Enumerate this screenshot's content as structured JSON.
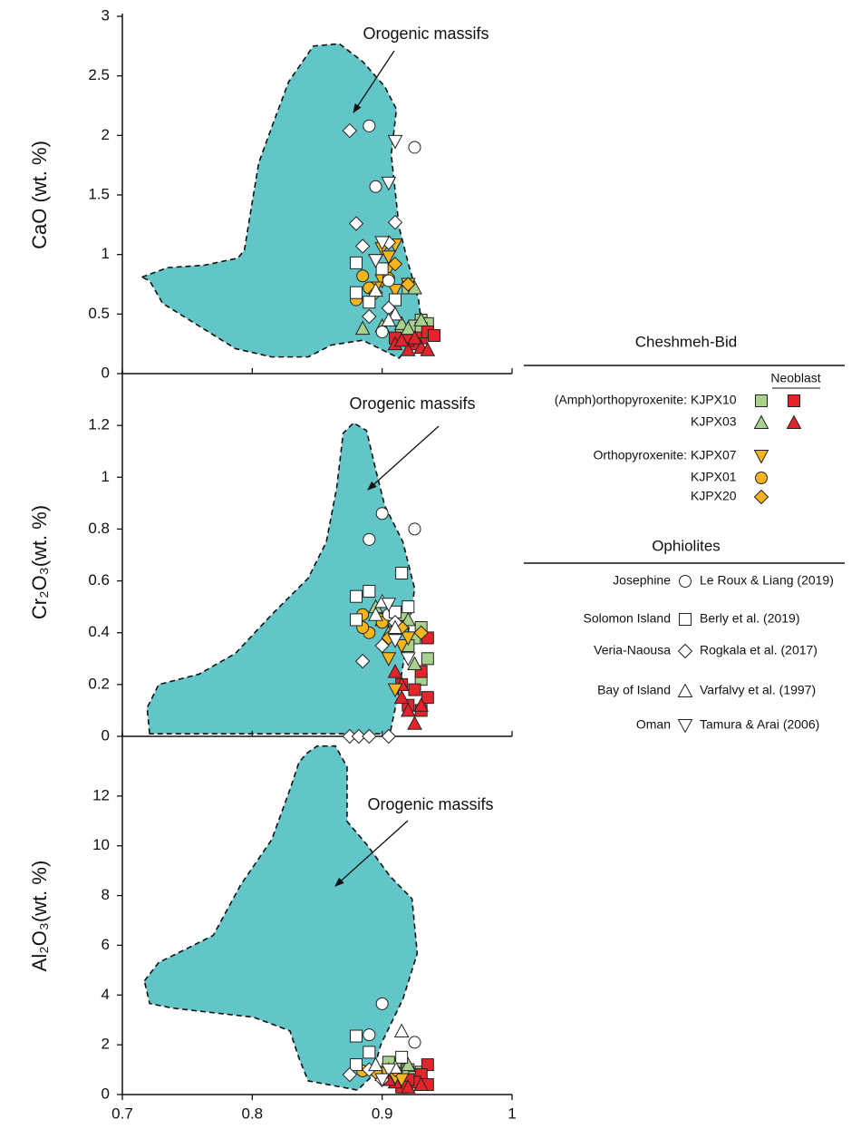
{
  "legend": {
    "title": "Cheshmeh-Bid",
    "neoblast_label": "Neoblast",
    "ophiolites_title": "Ophiolites",
    "series": [
      {
        "name": "KJPX10",
        "group": "(Amph)orthopyroxenite:",
        "marker": "square",
        "color": "#a9d18e"
      },
      {
        "marker": "square",
        "color": "#e3242b",
        "neoblast": true
      },
      {
        "name": "KJPX03",
        "marker": "triangle",
        "color": "#a9d18e"
      },
      {
        "marker": "triangle",
        "color": "#e3242b",
        "neoblast": true
      },
      {
        "name": "KJPX07",
        "group": "Orthopyroxenite:",
        "marker": "down-triangle",
        "color": "#f6b51e"
      },
      {
        "name": "KJPX01",
        "marker": "circle",
        "color": "#f6b51e"
      },
      {
        "name": "KJPX20",
        "marker": "diamond",
        "color": "#f6b51e"
      },
      {
        "name": "Le Roux & Liang (2019)",
        "locality": "Josephine",
        "marker": "circle",
        "color": "#ffffff"
      },
      {
        "name": "Berly et al. (2019)",
        "locality": "Solomon Island",
        "marker": "square",
        "color": "#ffffff"
      },
      {
        "name": "Rogkala et al. (2017)",
        "locality": "Veria-Naousa",
        "marker": "diamond",
        "color": "#ffffff"
      },
      {
        "name": "Varfalvy et al. (1997)",
        "locality": "Bay of Island",
        "marker": "triangle",
        "color": "#ffffff"
      },
      {
        "name": "Tamura & Arai (2006)",
        "locality": "Oman",
        "marker": "down-triangle",
        "color": "#ffffff"
      }
    ]
  },
  "chart_data": [
    {
      "type": "scatter",
      "ylabel": "CaO  (wt. %)",
      "ylim": [
        0,
        3
      ],
      "yticks": [
        0,
        0.5,
        1,
        1.5,
        2,
        2.5,
        3
      ],
      "annotation": "Orogenic massifs",
      "field": {
        "color": "#62c6c8",
        "x": [
          0.715,
          0.735,
          0.763,
          0.789,
          0.794,
          0.798,
          0.805,
          0.815,
          0.828,
          0.847,
          0.867,
          0.885,
          0.902,
          0.911,
          0.907,
          0.913,
          0.92,
          0.928,
          0.931,
          0.913,
          0.885,
          0.861,
          0.843,
          0.815,
          0.787,
          0.759,
          0.731,
          0.721
        ],
        "y": [
          0.81,
          0.89,
          0.91,
          0.97,
          1.04,
          1.31,
          1.77,
          2.07,
          2.45,
          2.75,
          2.77,
          2.62,
          2.41,
          2.22,
          1.84,
          1.23,
          0.93,
          0.62,
          0.36,
          0.13,
          0.28,
          0.24,
          0.14,
          0.14,
          0.21,
          0.4,
          0.59,
          0.78
        ]
      },
      "series": [
        {
          "x": [
            0.92,
            0.93,
            0.935,
            0.925,
            0.915,
            0.93
          ],
          "y": [
            0.72,
            0.45,
            0.42,
            0.4,
            0.35,
            0.38
          ]
        },
        {
          "x": [
            0.93,
            0.935,
            0.925,
            0.92,
            0.94,
            0.91
          ],
          "y": [
            0.3,
            0.35,
            0.25,
            0.28,
            0.32,
            0.3
          ]
        },
        {
          "x": [
            0.9,
            0.915,
            0.925,
            0.93,
            0.92,
            0.885
          ],
          "y": [
            0.4,
            0.42,
            0.72,
            0.45,
            0.38,
            0.38
          ]
        },
        {
          "x": [
            0.91,
            0.92,
            0.93,
            0.925,
            0.935,
            0.915
          ],
          "y": [
            0.25,
            0.2,
            0.22,
            0.3,
            0.2,
            0.28
          ]
        },
        {
          "x": [
            0.9,
            0.905,
            0.91,
            0.895,
            0.905,
            0.9,
            0.91,
            0.92,
            0.895
          ],
          "y": [
            1.05,
            0.98,
            1.08,
            0.95,
            0.88,
            0.78,
            0.7,
            0.75,
            0.72
          ]
        },
        {
          "x": [
            0.88,
            0.885,
            0.89,
            0.905
          ],
          "y": [
            0.62,
            0.82,
            0.72,
            0.8
          ]
        },
        {
          "x": [
            0.91,
            0.92,
            0.895
          ],
          "y": [
            0.92,
            0.75,
            0.68
          ]
        },
        {
          "x": [
            0.89,
            0.925,
            0.895,
            0.905,
            0.9
          ],
          "y": [
            2.08,
            1.9,
            1.57,
            0.78,
            0.35
          ]
        },
        {
          "x": [
            0.88,
            0.88,
            0.9,
            0.89,
            0.91
          ],
          "y": [
            0.93,
            0.68,
            0.88,
            0.6,
            0.62
          ]
        },
        {
          "x": [
            0.875,
            0.88,
            0.91,
            0.885,
            0.905,
            0.89,
            0.905
          ],
          "y": [
            2.04,
            1.26,
            1.27,
            1.07,
            1.1,
            0.48,
            0.55
          ]
        },
        {
          "x": [
            0.895,
            0.91,
            0.905
          ],
          "y": [
            0.7,
            0.5,
            0.45
          ]
        },
        {
          "x": [
            0.91,
            0.905,
            0.9,
            0.895
          ],
          "y": [
            1.95,
            1.6,
            1.1,
            0.95
          ]
        }
      ]
    },
    {
      "type": "scatter",
      "ylabel": "Cr₂O₃(wt. %)",
      "ylim": [
        0,
        1.4
      ],
      "yticks": [
        0,
        0.2,
        0.4,
        0.6,
        0.8,
        1,
        1.2
      ],
      "annotation": "Orogenic massifs",
      "field": {
        "color": "#62c6c8",
        "x": [
          0.721,
          0.719,
          0.728,
          0.759,
          0.787,
          0.815,
          0.843,
          0.857,
          0.865,
          0.87,
          0.878,
          0.888,
          0.895,
          0.902,
          0.916,
          0.925,
          0.92,
          0.913,
          0.906
        ],
        "y": [
          0.01,
          0.11,
          0.2,
          0.24,
          0.32,
          0.47,
          0.61,
          0.75,
          0.96,
          1.17,
          1.21,
          1.18,
          1.03,
          0.89,
          0.75,
          0.57,
          0.4,
          0.18,
          0.01
        ]
      },
      "series": [
        {
          "x": [
            0.93,
            0.925,
            0.935,
            0.93,
            0.915,
            0.92
          ],
          "y": [
            0.42,
            0.38,
            0.3,
            0.22,
            0.47,
            0.35
          ]
        },
        {
          "x": [
            0.935,
            0.93,
            0.925,
            0.935,
            0.92,
            0.93,
            0.915
          ],
          "y": [
            0.38,
            0.25,
            0.18,
            0.15,
            0.12,
            0.1,
            0.2
          ]
        },
        {
          "x": [
            0.895,
            0.9,
            0.91,
            0.92,
            0.925,
            0.905
          ],
          "y": [
            0.5,
            0.45,
            0.43,
            0.45,
            0.28,
            0.4
          ]
        },
        {
          "x": [
            0.91,
            0.915,
            0.92,
            0.93,
            0.925,
            0.915
          ],
          "y": [
            0.25,
            0.15,
            0.1,
            0.12,
            0.05,
            0.2
          ]
        },
        {
          "x": [
            0.91,
            0.915,
            0.905,
            0.92,
            0.91,
            0.9
          ],
          "y": [
            0.4,
            0.35,
            0.3,
            0.38,
            0.18,
            0.45
          ]
        },
        {
          "x": [
            0.885,
            0.89,
            0.9,
            0.885
          ],
          "y": [
            0.47,
            0.4,
            0.44,
            0.42
          ]
        },
        {
          "x": [
            0.915,
            0.93,
            0.905
          ],
          "y": [
            0.42,
            0.4,
            0.38
          ]
        },
        {
          "x": [
            0.9,
            0.925,
            0.89,
            0.905
          ],
          "y": [
            0.86,
            0.8,
            0.76,
            0.47
          ]
        },
        {
          "x": [
            0.915,
            0.88,
            0.89,
            0.91,
            0.88,
            0.92
          ],
          "y": [
            0.63,
            0.54,
            0.56,
            0.48,
            0.45,
            0.5
          ]
        },
        {
          "x": [
            0.885,
            0.875,
            0.882,
            0.89,
            0.905,
            0.9,
            0.91
          ],
          "y": [
            0.29,
            0,
            0,
            0,
            0,
            0.35,
            0.44
          ]
        },
        {
          "x": [
            0.9,
            0.895,
            0.91
          ],
          "y": [
            0.52,
            0.47,
            0.42
          ]
        },
        {
          "x": [
            0.905,
            0.91,
            0.92
          ],
          "y": [
            0.51,
            0.37,
            0.3
          ]
        }
      ]
    },
    {
      "type": "scatter",
      "ylabel": "Al₂O₃(wt. %)",
      "ylim": [
        0,
        14.4
      ],
      "yticks": [
        0,
        2,
        4,
        6,
        8,
        10,
        12
      ],
      "xlim": [
        0.7,
        1
      ],
      "xticks": [
        0.7,
        0.8,
        0.9,
        1
      ],
      "annotation": "Orogenic massifs",
      "field": {
        "color": "#62c6c8",
        "x": [
          0.717,
          0.728,
          0.749,
          0.77,
          0.791,
          0.815,
          0.829,
          0.836,
          0.842,
          0.85,
          0.864,
          0.873,
          0.873,
          0.888,
          0.906,
          0.923,
          0.927,
          0.916,
          0.899,
          0.892,
          0.881,
          0.843,
          0.836,
          0.829,
          0.801,
          0.77,
          0.738,
          0.721
        ],
        "y": [
          4.57,
          5.31,
          5.85,
          6.4,
          8.42,
          10.25,
          12.26,
          13.36,
          13.72,
          14.01,
          14.01,
          13.17,
          10.98,
          10.06,
          8.78,
          7.87,
          5.67,
          3.84,
          2.01,
          0.73,
          0.18,
          0.55,
          1.46,
          2.56,
          3.11,
          3.29,
          3.48,
          3.66
        ]
      },
      "series": [
        {
          "x": [
            0.91,
            0.92,
            0.93,
            0.905,
            0.925
          ],
          "y": [
            1.2,
            1,
            0.9,
            1.3,
            0.7
          ]
        },
        {
          "x": [
            0.935,
            0.93,
            0.925,
            0.935,
            0.92,
            0.915
          ],
          "y": [
            1.2,
            0.8,
            0.5,
            0.4,
            0.6,
            0.3
          ]
        },
        {
          "x": [
            0.905,
            0.92,
            0.9,
            0.91
          ],
          "y": [
            1,
            1.2,
            0.8,
            0.9
          ]
        },
        {
          "x": [
            0.91,
            0.92,
            0.905,
            0.93
          ],
          "y": [
            0.5,
            0.3,
            0.6,
            0.4
          ]
        },
        {
          "x": [
            0.9,
            0.91,
            0.915
          ],
          "y": [
            0.9,
            0.7,
            0.6
          ]
        },
        {
          "x": [
            0.885,
            0.9
          ],
          "y": [
            0.95,
            0.85
          ]
        },
        {
          "x": [
            0.895,
            0.91
          ],
          "y": [
            0.9,
            1
          ]
        },
        {
          "x": [
            0.9,
            0.925,
            0.89
          ],
          "y": [
            3.65,
            2.1,
            2.4
          ]
        },
        {
          "x": [
            0.88,
            0.89,
            0.915,
            0.88
          ],
          "y": [
            2.35,
            1.7,
            1.5,
            1.2
          ]
        },
        {
          "x": [
            0.875,
            0.89,
            0.9
          ],
          "y": [
            0.8,
            1,
            0.6
          ]
        },
        {
          "x": [
            0.915,
            0.895,
            0.91
          ],
          "y": [
            2.55,
            1.2,
            1.1
          ]
        },
        {
          "x": [
            0.905,
            0.9
          ],
          "y": [
            1,
            0.6
          ]
        }
      ]
    }
  ]
}
